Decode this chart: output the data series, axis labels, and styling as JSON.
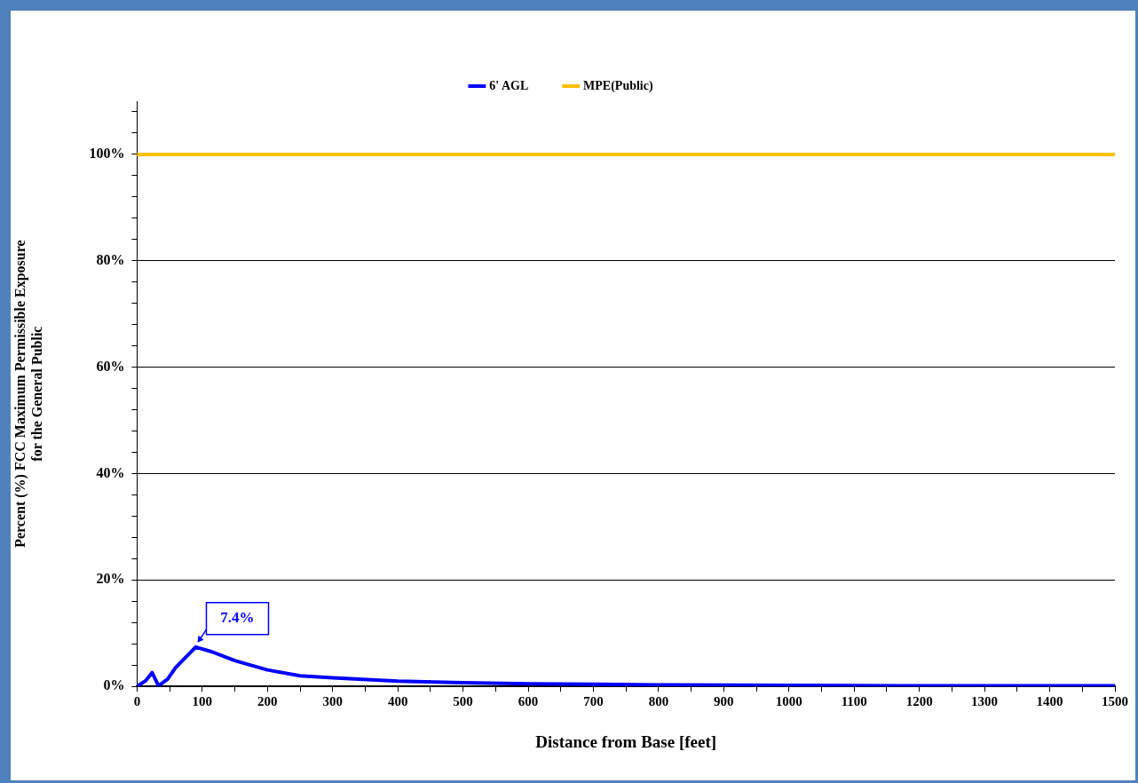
{
  "chart_data": {
    "type": "line",
    "xlabel": "Distance from Base [feet]",
    "ylabel": "Percent (%) FCC Maximum Permissible Exposure\nfor the General Public",
    "series": [
      {
        "name": "6' AGL",
        "color": "#0000ff",
        "x": [
          0,
          13.5,
          23,
          33,
          47,
          59,
          90,
          115,
          151,
          200,
          250,
          300,
          400,
          500,
          600,
          700,
          800,
          1000,
          1200,
          1500
        ],
        "values": [
          0,
          1.1,
          2.6,
          0.1,
          1.4,
          3.5,
          7.4,
          6.5,
          4.8,
          3.1,
          2.0,
          1.6,
          1.0,
          0.7,
          0.5,
          0.4,
          0.3,
          0.2,
          0.1,
          0.1
        ]
      },
      {
        "name": "MPE(Public)",
        "color": "#ffc000",
        "x": [
          0,
          1500
        ],
        "values": [
          100,
          100
        ]
      }
    ],
    "xlim": [
      0,
      1500
    ],
    "xticks": [
      0,
      {
        "value": 50,
        "label": null
      },
      100,
      {
        "value": 150,
        "label": null
      },
      200,
      {
        "value": 250,
        "label": null
      },
      300,
      {
        "value": 350,
        "label": null
      },
      400,
      {
        "value": 450,
        "label": null
      },
      500,
      {
        "value": 550,
        "label": null
      },
      600,
      {
        "value": 650,
        "label": null
      },
      700,
      {
        "value": 750,
        "label": null
      },
      800,
      {
        "value": 850,
        "label": null
      },
      900,
      {
        "value": 950,
        "label": null
      },
      1000,
      {
        "value": 1050,
        "label": null
      },
      1100,
      {
        "value": 1150,
        "label": null
      },
      1200,
      {
        "value": 1250,
        "label": null
      },
      1300,
      {
        "value": 1350,
        "label": null
      },
      1400,
      {
        "value": 1450,
        "label": null
      },
      1500
    ],
    "ylim": [
      0,
      110
    ],
    "yticks": [
      {
        "value": 0,
        "label": "0%"
      },
      {
        "value": 4,
        "label": null
      },
      {
        "value": 8,
        "label": null
      },
      {
        "value": 12,
        "label": null
      },
      {
        "value": 16,
        "label": null
      },
      {
        "value": 20,
        "label": "20%"
      },
      {
        "value": 24,
        "label": null
      },
      {
        "value": 28,
        "label": null
      },
      {
        "value": 32,
        "label": null
      },
      {
        "value": 36,
        "label": null
      },
      {
        "value": 40,
        "label": "40%"
      },
      {
        "value": 44,
        "label": null
      },
      {
        "value": 48,
        "label": null
      },
      {
        "value": 52,
        "label": null
      },
      {
        "value": 56,
        "label": null
      },
      {
        "value": 60,
        "label": "60%"
      },
      {
        "value": 64,
        "label": null
      },
      {
        "value": 68,
        "label": null
      },
      {
        "value": 72,
        "label": null
      },
      {
        "value": 76,
        "label": null
      },
      {
        "value": 80,
        "label": "80%"
      },
      {
        "value": 84,
        "label": null
      },
      {
        "value": 88,
        "label": null
      },
      {
        "value": 92,
        "label": null
      },
      {
        "value": 96,
        "label": null
      },
      {
        "value": 100,
        "label": "100%"
      },
      {
        "value": 104,
        "label": null
      },
      {
        "value": 108,
        "label": null
      }
    ],
    "grid": "y",
    "legend": "top",
    "marker": "none",
    "line_style": "solid",
    "annotations": [
      {
        "text": "7.4%",
        "x": 90,
        "y": 7.4
      }
    ]
  }
}
